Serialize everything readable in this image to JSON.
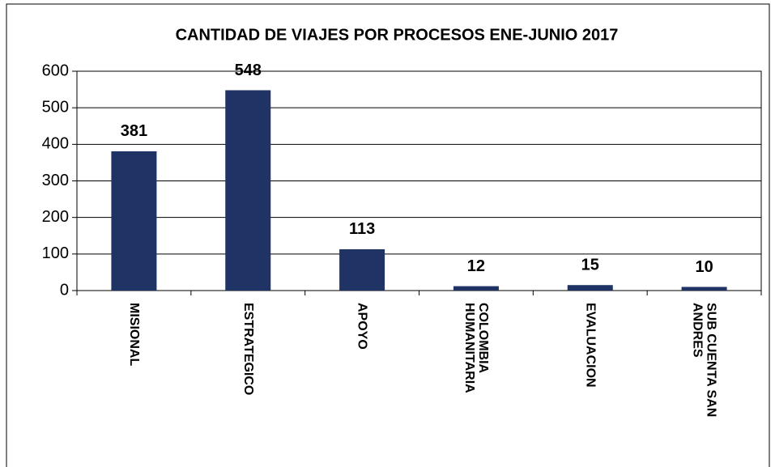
{
  "chart_data": {
    "type": "bar",
    "title": "CANTIDAD DE VIAJES POR PROCESOS ENE-JUNIO 2017",
    "categories": [
      "MISIONAL",
      "ESTRATEGICO",
      "APOYO",
      "COLOMBIA HUMANITARIA",
      "EVALUACION",
      "SUB CUENTA SAN ANDRES"
    ],
    "values": [
      381,
      548,
      113,
      12,
      15,
      10
    ],
    "color": "#1f3464",
    "ylim": [
      0,
      600
    ],
    "yticks": [
      0,
      100,
      200,
      300,
      400,
      500,
      600
    ],
    "grid": true
  }
}
